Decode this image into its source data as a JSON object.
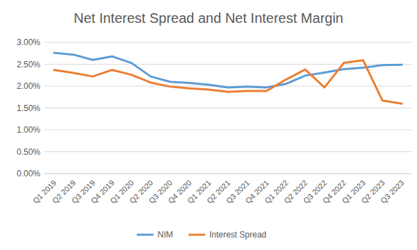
{
  "chart_data": {
    "type": "line",
    "title": "Net Interest Spread and Net Interest Margin",
    "categories": [
      "Q1 2019",
      "Q2 2019",
      "Q3 2019",
      "Q4 2019",
      "Q1 2020",
      "Q2 2020",
      "Q3 2020",
      "Q4 2020",
      "Q1 2021",
      "Q2 2021",
      "Q3 2021",
      "Q4 2021",
      "Q1 2022",
      "Q2 2022",
      "Q3 2022",
      "Q4 2022",
      "Q1 2023",
      "Q2 2023",
      "Q3 2023"
    ],
    "series": [
      {
        "name": "NIM",
        "color": "#5b9bd5",
        "values": [
          2.76,
          2.72,
          2.6,
          2.68,
          2.53,
          2.22,
          2.1,
          2.07,
          2.03,
          1.97,
          1.99,
          1.97,
          2.05,
          2.24,
          2.31,
          2.39,
          2.42,
          2.48,
          2.49
        ]
      },
      {
        "name": "Interest Spread",
        "color": "#ed7d31",
        "values": [
          2.37,
          2.3,
          2.22,
          2.37,
          2.26,
          2.08,
          1.99,
          1.95,
          1.92,
          1.87,
          1.89,
          1.89,
          2.15,
          2.38,
          1.97,
          2.53,
          2.59,
          1.67,
          1.6
        ]
      }
    ],
    "ylim": [
      0,
      3
    ],
    "yticks": [
      {
        "value": 0,
        "label": "0.00%"
      },
      {
        "value": 0.5,
        "label": "0.50%"
      },
      {
        "value": 1,
        "label": "1.00%"
      },
      {
        "value": 1.5,
        "label": "1.50%"
      },
      {
        "value": 2,
        "label": "2.00%"
      },
      {
        "value": 2.5,
        "label": "2.50%"
      },
      {
        "value": 3,
        "label": "3.00%"
      }
    ],
    "grid": true,
    "legend": "bottom"
  }
}
